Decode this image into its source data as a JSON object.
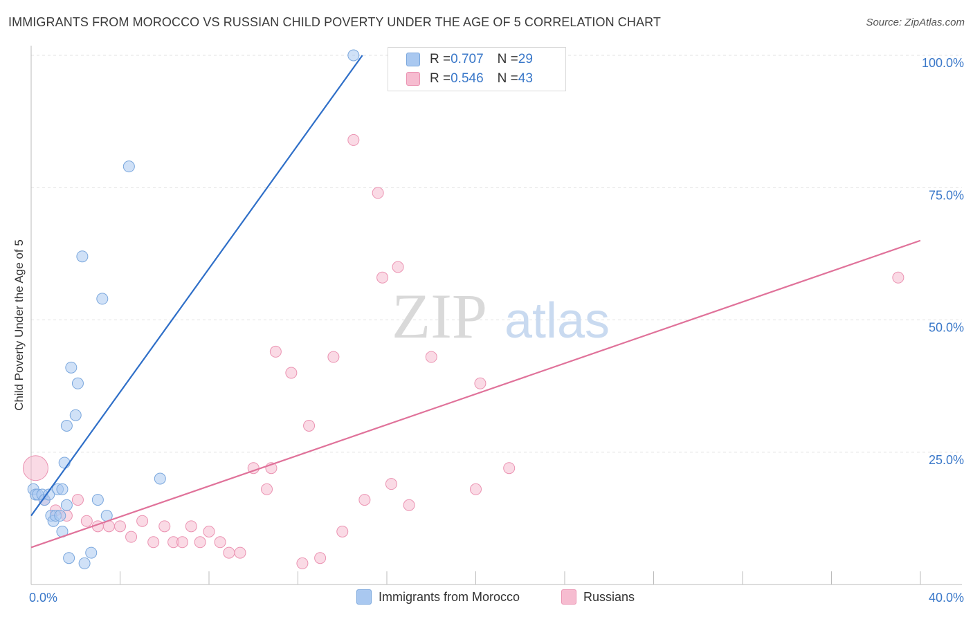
{
  "title": "IMMIGRANTS FROM MOROCCO VS RUSSIAN CHILD POVERTY UNDER THE AGE OF 5 CORRELATION CHART",
  "source": "Source: ZipAtlas.com",
  "watermark": {
    "zip": "ZIP",
    "atlas": "atlas"
  },
  "legend_top": [
    {
      "r_label": "R = ",
      "r_value": "0.707",
      "n_label": "N = ",
      "n_value": "29"
    },
    {
      "r_label": "R = ",
      "r_value": "0.546",
      "n_label": "N = ",
      "n_value": "43"
    }
  ],
  "chart_data": {
    "type": "scatter",
    "title": "IMMIGRANTS FROM MOROCCO VS RUSSIAN CHILD POVERTY UNDER THE AGE OF 5 CORRELATION CHART",
    "xlabel": "",
    "ylabel": "Child Poverty Under the Age of 5",
    "xlim": [
      0,
      40
    ],
    "ylim": [
      0,
      100
    ],
    "x_tick_labels": [
      "0.0%",
      "40.0%"
    ],
    "y_tick_values": [
      25,
      50,
      75,
      100
    ],
    "y_tick_labels": [
      "25.0%",
      "50.0%",
      "75.0%",
      "100.0%"
    ],
    "grid": true,
    "legend_position": "bottom",
    "colors": {
      "morocco_fill": "#a9c8f0",
      "morocco_stroke": "#7aa7dd",
      "morocco_line": "#2f6fc8",
      "russians_fill": "#f6bcd0",
      "russians_stroke": "#eb93b2",
      "russians_line": "#e0729a",
      "tick_label": "#3a78c9"
    },
    "series": [
      {
        "name": "Immigrants from Morocco",
        "points": [
          [
            0.1,
            18
          ],
          [
            0.2,
            17
          ],
          [
            0.3,
            17
          ],
          [
            0.5,
            17
          ],
          [
            0.6,
            16
          ],
          [
            0.8,
            17
          ],
          [
            0.9,
            13
          ],
          [
            1.0,
            12
          ],
          [
            1.1,
            13
          ],
          [
            1.2,
            18
          ],
          [
            1.3,
            13
          ],
          [
            1.4,
            10
          ],
          [
            1.4,
            18
          ],
          [
            1.5,
            23
          ],
          [
            1.6,
            30
          ],
          [
            1.6,
            15
          ],
          [
            1.7,
            5
          ],
          [
            1.8,
            41
          ],
          [
            2.0,
            32
          ],
          [
            2.1,
            38
          ],
          [
            2.3,
            62
          ],
          [
            2.4,
            4
          ],
          [
            2.7,
            6
          ],
          [
            3.0,
            16
          ],
          [
            3.2,
            54
          ],
          [
            3.4,
            13
          ],
          [
            4.4,
            79
          ],
          [
            5.8,
            20
          ],
          [
            14.5,
            100
          ]
        ],
        "trend": {
          "x": [
            0,
            14.9
          ],
          "y": [
            13,
            100
          ]
        }
      },
      {
        "name": "Russians",
        "points": [
          [
            0.2,
            22
          ],
          [
            0.6,
            16
          ],
          [
            1.1,
            14
          ],
          [
            1.6,
            13
          ],
          [
            2.1,
            16
          ],
          [
            2.5,
            12
          ],
          [
            3.0,
            11
          ],
          [
            3.5,
            11
          ],
          [
            4.0,
            11
          ],
          [
            4.5,
            9
          ],
          [
            5.0,
            12
          ],
          [
            5.5,
            8
          ],
          [
            6.0,
            11
          ],
          [
            6.4,
            8
          ],
          [
            6.8,
            8
          ],
          [
            7.2,
            11
          ],
          [
            7.6,
            8
          ],
          [
            8.0,
            10
          ],
          [
            8.5,
            8
          ],
          [
            8.9,
            6
          ],
          [
            9.4,
            6
          ],
          [
            10.0,
            22
          ],
          [
            10.6,
            18
          ],
          [
            10.8,
            22
          ],
          [
            11.0,
            44
          ],
          [
            11.7,
            40
          ],
          [
            12.2,
            4
          ],
          [
            12.5,
            30
          ],
          [
            13.0,
            5
          ],
          [
            13.6,
            43
          ],
          [
            14.0,
            10
          ],
          [
            15.0,
            16
          ],
          [
            14.5,
            84
          ],
          [
            15.6,
            74
          ],
          [
            15.8,
            58
          ],
          [
            16.2,
            19
          ],
          [
            16.5,
            60
          ],
          [
            17.0,
            15
          ],
          [
            18.0,
            43
          ],
          [
            20.0,
            18
          ],
          [
            20.2,
            38
          ],
          [
            21.5,
            22
          ],
          [
            39.0,
            58
          ]
        ],
        "trend": {
          "x": [
            0,
            40
          ],
          "y": [
            7,
            65
          ]
        }
      }
    ]
  },
  "bottom_legend": [
    "Immigrants from Morocco",
    "Russians"
  ]
}
